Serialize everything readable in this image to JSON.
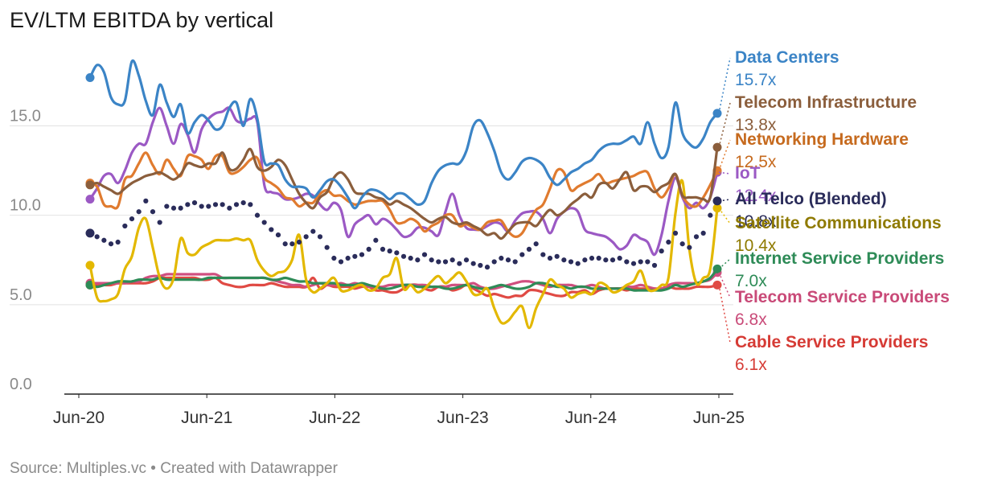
{
  "title": "EV/LTM EBITDA by vertical",
  "footer": {
    "source": "Source: Multiples.vc",
    "separator": "•",
    "credit": "Created with Datawrapper"
  },
  "chart_data": {
    "type": "line",
    "title": "EV/LTM EBITDA by vertical",
    "xlabel": "",
    "ylabel": "",
    "x_ticks": [
      "Jun-20",
      "Jun-21",
      "Jun-22",
      "Jun-23",
      "Jun-24",
      "Jun-25"
    ],
    "x_range": [
      "2020-06",
      "2025-06"
    ],
    "y_ticks": [
      "0.0",
      "5.0",
      "10.0",
      "15.0"
    ],
    "ylim": [
      0,
      18.8
    ],
    "grid": true,
    "legend": "direct labels at right",
    "series": [
      {
        "name": "Data Centers",
        "color": "#3b84c6",
        "style": "solid",
        "end_label": "15.7x",
        "values": [
          17.7,
          18.4,
          18.0,
          16.6,
          16.2,
          16.4,
          18.6,
          17.8,
          16.4,
          15.6,
          17.3,
          16.3,
          15.5,
          16.2,
          14.6,
          15.2,
          15.6,
          15.3,
          14.8,
          15.0,
          16.0,
          16.3,
          15.0,
          16.5,
          15.4,
          13.0,
          12.9,
          12.8,
          12.0,
          11.6,
          11.6,
          11.5,
          11.0,
          11.4,
          11.9,
          12.0,
          11.6,
          11.0,
          10.4,
          11.0,
          11.4,
          11.4,
          11.2,
          10.9,
          11.2,
          11.2,
          10.9,
          10.6,
          10.8,
          11.8,
          12.5,
          12.8,
          12.9,
          12.9,
          13.6,
          15.0,
          15.3,
          14.6,
          13.6,
          12.4,
          12.0,
          12.4,
          13.0,
          13.2,
          13.1,
          12.8,
          12.1,
          11.7,
          12.0,
          12.4,
          12.6,
          12.9,
          13.1,
          13.6,
          13.9,
          14.0,
          14.0,
          14.2,
          14.4,
          14.0,
          15.2,
          14.0,
          13.2,
          13.8,
          16.3,
          14.6,
          14.0,
          13.8,
          14.3,
          15.2,
          15.7
        ]
      },
      {
        "name": "Telecom Infrastructure",
        "color": "#8b5e3c",
        "style": "solid",
        "end_label": "13.8x",
        "values": [
          11.7,
          11.8,
          11.6,
          11.4,
          11.2,
          11.5,
          11.8,
          12.0,
          12.2,
          12.3,
          12.4,
          12.2,
          12.0,
          12.3,
          12.9,
          12.8,
          12.7,
          12.9,
          12.9,
          13.5,
          12.6,
          12.6,
          13.1,
          13.7,
          12.7,
          12.5,
          12.7,
          13.1,
          12.8,
          12.0,
          11.2,
          10.7,
          10.4,
          11.0,
          11.3,
          12.1,
          12.4,
          12.0,
          11.3,
          11.2,
          11.2,
          11.0,
          10.9,
          10.6,
          10.8,
          10.6,
          10.4,
          10.1,
          9.8,
          9.6,
          9.8,
          9.9,
          9.6,
          9.5,
          9.6,
          9.4,
          9.2,
          8.9,
          9.0,
          8.7,
          9.1,
          9.5,
          9.6,
          9.6,
          9.4,
          9.9,
          10.3,
          10.0,
          10.2,
          10.6,
          10.9,
          11.2,
          11.0,
          11.7,
          11.8,
          11.5,
          12.0,
          12.4,
          11.4,
          11.6,
          11.6,
          11.3,
          11.6,
          11.8,
          12.3,
          11.1,
          11.0,
          11.0,
          10.9,
          11.0,
          13.8
        ]
      },
      {
        "name": "Networking Hardware",
        "color": "#e07b2f",
        "style": "solid",
        "end_label": "12.5x",
        "values": [
          11.8,
          11.6,
          10.6,
          10.5,
          10.5,
          12.0,
          12.2,
          12.9,
          13.5,
          12.8,
          12.3,
          13.1,
          12.6,
          12.2,
          13.3,
          13.3,
          13.1,
          12.6,
          13.3,
          13.3,
          12.4,
          12.4,
          12.7,
          13.1,
          13.2,
          12.1,
          11.8,
          11.5,
          11.0,
          10.9,
          10.5,
          10.7,
          10.7,
          11.2,
          11.4,
          11.1,
          11.1,
          10.8,
          10.6,
          10.7,
          10.8,
          10.8,
          10.8,
          10.3,
          9.6,
          9.6,
          9.8,
          9.6,
          9.1,
          9.4,
          9.6,
          10.0,
          10.0,
          9.4,
          9.5,
          9.3,
          9.2,
          9.6,
          9.7,
          9.7,
          9.1,
          8.8,
          9.0,
          9.7,
          10.3,
          10.6,
          11.5,
          12.5,
          12.4,
          11.4,
          11.6,
          11.8,
          12.0,
          12.3,
          11.8,
          11.9,
          12.0,
          12.1,
          12.2,
          12.4,
          12.4,
          11.5,
          11.0,
          11.5,
          12.3,
          11.1,
          10.6,
          10.5,
          11.0,
          11.7,
          12.5
        ]
      },
      {
        "name": "IoT",
        "color": "#9b59c4",
        "style": "solid",
        "end_label": "12.4x",
        "values": [
          10.9,
          11.5,
          12.2,
          12.3,
          11.8,
          12.5,
          13.5,
          14.0,
          14.0,
          15.2,
          16.0,
          15.0,
          14.0,
          15.1,
          14.5,
          13.5,
          14.8,
          15.4,
          15.7,
          15.8,
          16.0,
          15.3,
          15.2,
          15.4,
          15.2,
          11.7,
          11.3,
          11.2,
          10.9,
          10.9,
          11.0,
          11.2,
          11.1,
          10.6,
          10.3,
          10.7,
          10.3,
          8.8,
          9.5,
          9.8,
          10.0,
          9.5,
          9.8,
          9.6,
          9.2,
          8.8,
          8.9,
          9.3,
          9.3,
          9.1,
          8.9,
          10.2,
          11.2,
          10.0,
          9.3,
          9.2,
          9.2,
          9.4,
          9.6,
          9.5,
          9.1,
          9.7,
          10.1,
          10.2,
          10.2,
          9.8,
          9.0,
          9.8,
          10.2,
          10.4,
          10.2,
          9.2,
          9.0,
          8.9,
          8.8,
          8.5,
          8.1,
          8.3,
          8.9,
          8.7,
          8.5,
          7.8,
          8.9,
          10.8,
          12.1,
          11.0,
          10.4,
          10.7,
          10.4,
          11.0,
          12.4
        ]
      },
      {
        "name": "All Telco (Blended)",
        "color": "#2a2c5a",
        "style": "dotted",
        "end_label": "10.8x",
        "values": [
          9.0,
          8.8,
          8.6,
          8.4,
          8.5,
          9.4,
          9.8,
          10.2,
          10.8,
          10.2,
          9.6,
          10.5,
          10.4,
          10.4,
          10.6,
          10.7,
          10.5,
          10.5,
          10.6,
          10.6,
          10.4,
          10.6,
          10.7,
          10.6,
          10.0,
          9.6,
          9.2,
          8.9,
          8.4,
          8.4,
          8.5,
          8.8,
          9.1,
          8.8,
          8.2,
          7.6,
          7.4,
          7.6,
          7.7,
          7.8,
          8.1,
          8.6,
          8.1,
          8.0,
          7.9,
          7.7,
          7.6,
          7.5,
          7.8,
          7.5,
          7.4,
          7.4,
          7.5,
          7.3,
          7.5,
          7.3,
          7.2,
          7.1,
          7.4,
          7.6,
          7.5,
          7.4,
          7.8,
          8.1,
          8.4,
          7.8,
          7.6,
          7.7,
          7.5,
          7.4,
          7.3,
          7.5,
          7.6,
          7.6,
          7.5,
          7.5,
          7.6,
          7.4,
          7.3,
          7.4,
          7.4,
          7.2,
          8.0,
          8.5,
          9.0,
          8.4,
          8.2,
          8.8,
          9.0,
          10.0,
          10.8
        ]
      },
      {
        "name": "Satellite Communications",
        "color": "#e3b800",
        "style": "solid",
        "end_label": "10.4x",
        "values": [
          7.2,
          5.4,
          5.2,
          5.3,
          5.6,
          7.0,
          7.7,
          9.3,
          9.8,
          8.2,
          6.5,
          5.9,
          6.5,
          8.7,
          7.9,
          7.8,
          8.2,
          8.4,
          8.6,
          8.6,
          8.6,
          8.7,
          8.6,
          8.6,
          7.5,
          6.9,
          6.6,
          6.8,
          6.9,
          7.5,
          8.9,
          6.4,
          5.7,
          5.9,
          6.2,
          6.5,
          5.8,
          5.8,
          6.0,
          6.1,
          5.8,
          5.9,
          6.5,
          6.7,
          7.6,
          5.9,
          6.1,
          5.7,
          5.9,
          6.3,
          6.6,
          6.2,
          6.5,
          6.8,
          6.3,
          5.6,
          5.6,
          5.9,
          4.8,
          4.0,
          4.1,
          4.6,
          4.9,
          3.7,
          4.8,
          5.6,
          6.4,
          6.1,
          5.9,
          5.4,
          5.6,
          5.7,
          5.6,
          6.2,
          6.1,
          5.7,
          5.8,
          6.1,
          6.3,
          6.9,
          5.9,
          5.8,
          6.1,
          6.5,
          10.1,
          11.9,
          8.1,
          6.2,
          6.5,
          7.0,
          10.4
        ]
      },
      {
        "name": "Internet Service Providers",
        "color": "#2e8b57",
        "style": "solid",
        "end_label": "7.0x",
        "values": [
          6.1,
          6.0,
          6.1,
          6.2,
          6.3,
          6.3,
          6.3,
          6.4,
          6.4,
          6.4,
          6.5,
          6.4,
          6.4,
          6.4,
          6.4,
          6.4,
          6.4,
          6.5,
          6.5,
          6.5,
          6.5,
          6.5,
          6.5,
          6.5,
          6.5,
          6.5,
          6.4,
          6.4,
          6.5,
          6.4,
          6.3,
          6.3,
          6.2,
          6.2,
          6.2,
          6.2,
          6.1,
          6.1,
          6.1,
          6.2,
          6.1,
          6.0,
          5.9,
          5.9,
          6.0,
          6.1,
          6.1,
          6.0,
          6.0,
          6.0,
          6.0,
          5.9,
          5.9,
          6.0,
          6.1,
          6.0,
          5.9,
          5.9,
          6.0,
          6.1,
          6.0,
          5.9,
          5.9,
          6.0,
          6.2,
          6.2,
          6.1,
          6.0,
          6.0,
          5.9,
          6.0,
          6.0,
          5.9,
          5.9,
          5.9,
          5.9,
          5.9,
          5.9,
          5.8,
          5.8,
          5.8,
          5.8,
          5.8,
          5.9,
          6.1,
          6.0,
          6.1,
          6.2,
          6.3,
          6.5,
          7.0
        ]
      },
      {
        "name": "Telecom Service Providers",
        "color": "#d04f7f",
        "style": "solid",
        "end_label": "6.8x",
        "values": [
          6.2,
          6.2,
          6.2,
          6.2,
          6.2,
          6.2,
          6.3,
          6.3,
          6.5,
          6.6,
          6.6,
          6.7,
          6.7,
          6.7,
          6.7,
          6.7,
          6.7,
          6.7,
          6.7,
          6.5,
          6.5,
          6.5,
          6.5,
          6.5,
          6.5,
          6.5,
          6.4,
          6.3,
          6.2,
          6.1,
          6.1,
          6.0,
          6.1,
          6.2,
          6.1,
          6.1,
          6.2,
          6.1,
          6.2,
          6.1,
          6.0,
          6.0,
          6.0,
          6.1,
          6.1,
          6.1,
          6.1,
          6.1,
          6.1,
          6.0,
          6.0,
          6.0,
          6.1,
          6.1,
          6.1,
          6.2,
          6.0,
          5.9,
          5.9,
          6.0,
          6.1,
          6.2,
          6.3,
          6.3,
          6.2,
          6.1,
          6.0,
          6.1,
          6.1,
          6.1,
          6.0,
          6.0,
          6.1,
          6.0,
          5.9,
          5.9,
          5.9,
          6.0,
          6.0,
          6.1,
          6.0,
          5.9,
          5.9,
          6.1,
          6.2,
          6.2,
          6.2,
          6.2,
          6.3,
          6.4,
          6.8
        ]
      },
      {
        "name": "Cable Service Providers",
        "color": "#e04a44",
        "style": "solid",
        "end_label": "6.1x",
        "values": [
          6.1,
          6.1,
          6.1,
          6.1,
          6.2,
          6.2,
          6.2,
          6.2,
          6.2,
          6.3,
          6.5,
          6.5,
          6.5,
          6.5,
          6.5,
          6.5,
          6.4,
          6.4,
          6.5,
          6.2,
          6.1,
          6.0,
          6.0,
          6.1,
          6.1,
          6.1,
          6.2,
          6.1,
          6.0,
          6.0,
          6.0,
          6.0,
          6.5,
          5.9,
          6.1,
          6.0,
          6.0,
          6.0,
          5.9,
          6.0,
          6.0,
          5.8,
          5.8,
          5.7,
          5.7,
          5.9,
          6.1,
          6.1,
          5.9,
          5.8,
          6.0,
          6.0,
          5.8,
          5.9,
          6.1,
          5.9,
          5.7,
          5.5,
          5.6,
          5.5,
          5.4,
          5.5,
          5.5,
          5.8,
          5.8,
          5.7,
          5.6,
          5.5,
          5.5,
          5.7,
          5.7,
          5.8,
          5.6,
          5.8,
          5.9,
          5.9,
          5.9,
          5.8,
          5.9,
          5.9,
          5.9,
          5.9,
          5.9,
          6.0,
          5.9,
          5.9,
          5.9,
          6.0,
          6.0,
          6.0,
          6.1
        ]
      }
    ]
  }
}
